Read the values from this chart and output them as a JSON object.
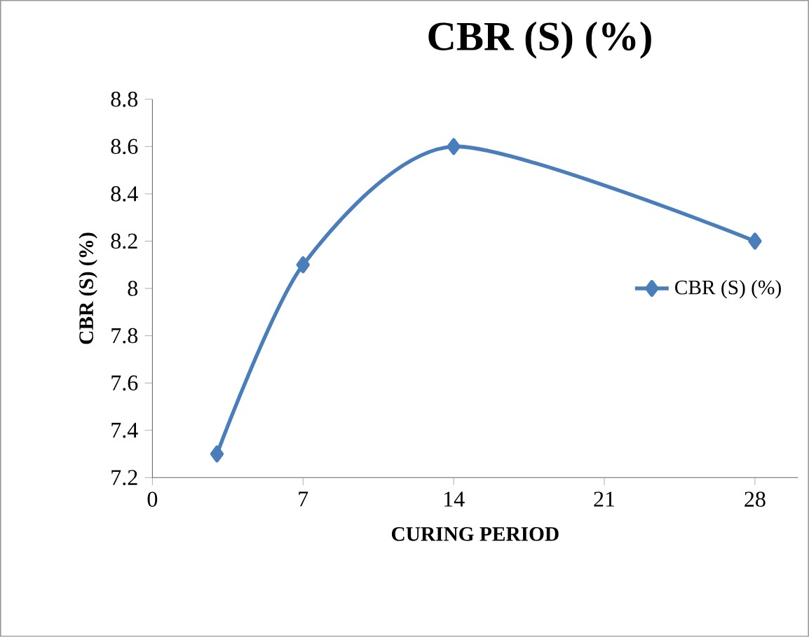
{
  "chart_data": {
    "type": "line",
    "title": "CBR (S) (%)",
    "xlabel": "CURING PERIOD",
    "ylabel": "CBR (S) (%)",
    "x": [
      3,
      7,
      14,
      28
    ],
    "series": [
      {
        "name": "CBR (S) (%)",
        "color": "#4a7ebb",
        "values": [
          7.3,
          8.1,
          8.6,
          8.2
        ]
      }
    ],
    "xlim": [
      0,
      30
    ],
    "xticks": [
      0,
      7,
      14,
      21,
      28
    ],
    "ylim": [
      7.2,
      8.8
    ],
    "yticks": [
      7.2,
      7.4,
      7.6,
      7.8,
      8,
      8.2,
      8.4,
      8.6,
      8.8
    ],
    "marker": "diamond",
    "line_style": "solid",
    "legend": "right",
    "grid": false
  }
}
